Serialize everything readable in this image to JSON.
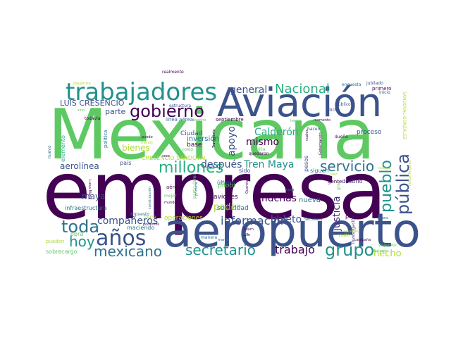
{
  "wordcloud": {
    "palette": {
      "dark_purple": "#440154",
      "indigo": "#472d7b",
      "blue": "#3b528b",
      "steel": "#2c728e",
      "teal": "#21918c",
      "green": "#28ae80",
      "light_green": "#5ec962",
      "lime": "#addc30",
      "yellow": "#fde725",
      "background": "#ffffff"
    },
    "words": [
      {
        "text": "Mexicana",
        "color": "#5ec962"
      },
      {
        "text": "empresa",
        "color": "#440154"
      },
      {
        "text": "aeropuerto",
        "color": "#3b528b"
      },
      {
        "text": "Aviación",
        "color": "#3b528b"
      },
      {
        "text": "trabajadores",
        "color": "#21918c"
      },
      {
        "text": "años",
        "color": "#3b528b"
      },
      {
        "text": "millones",
        "color": "#28ae80"
      },
      {
        "text": "gobierno",
        "color": "#440154"
      },
      {
        "text": "Nacional",
        "color": "#28ae80"
      },
      {
        "text": "pueblo",
        "color": "#21918c"
      },
      {
        "text": "servicio",
        "color": "#2c728e"
      },
      {
        "text": "pública",
        "color": "#3b528b"
      },
      {
        "text": "grupo",
        "color": "#21918c"
      },
      {
        "text": "mexicano",
        "color": "#2c728e"
      },
      {
        "text": "toda",
        "color": "#2c728e"
      },
      {
        "text": "hoy",
        "color": "#21918c"
      },
      {
        "text": "secretario",
        "color": "#21918c"
      },
      {
        "text": "trabajo",
        "color": "#440154"
      },
      {
        "text": "información",
        "color": "#3b528b"
      },
      {
        "text": "compañeros",
        "color": "#3b528b"
      },
      {
        "text": "boleto",
        "color": "#3b528b"
      },
      {
        "text": "Tren Maya",
        "color": "#21918c"
      },
      {
        "text": "después",
        "color": "#3b528b"
      },
      {
        "text": "muchas",
        "color": "#440154"
      },
      {
        "text": "general",
        "color": "#3b528b"
      },
      {
        "text": "apoyo",
        "color": "#3b528b"
      },
      {
        "text": "mismo",
        "color": "#440154"
      },
      {
        "text": "Calderón",
        "color": "#28ae80"
      },
      {
        "text": "parte",
        "color": "#3b528b"
      },
      {
        "text": "LUIS CRESENCIO",
        "color": "#3b528b"
      },
      {
        "text": "aerolínea",
        "color": "#3b528b"
      },
      {
        "text": "justicia",
        "color": "#472d7b"
      },
      {
        "text": "poder",
        "color": "#addc30"
      },
      {
        "text": "hecho",
        "color": "#addc30"
      },
      {
        "text": "maya",
        "color": "#3b528b"
      },
      {
        "text": "bienes",
        "color": "#addc30"
      },
      {
        "text": "nueva",
        "color": "#2c728e"
      },
      {
        "text": "seguridad",
        "color": "#2c728e"
      },
      {
        "text": "operaciones",
        "color": "#addc30"
      },
      {
        "text": "aviones",
        "color": "#440154"
      },
      {
        "text": "piloto",
        "color": "#5ec962"
      },
      {
        "text": "último",
        "color": "#3b528b"
      },
      {
        "text": "inversión",
        "color": "#2c728e"
      },
      {
        "text": "Ciudad",
        "color": "#3b528b"
      },
      {
        "text": "base",
        "color": "#440154"
      },
      {
        "text": "país",
        "color": "#3b528b"
      },
      {
        "text": "sido",
        "color": "#3b528b"
      },
      {
        "text": "proceso",
        "color": "#3b528b"
      },
      {
        "text": "destino",
        "color": "#472d7b"
      },
      {
        "text": "gente",
        "color": "#440154"
      },
      {
        "text": "punto",
        "color": "#440154"
      },
      {
        "text": "siguen",
        "color": "#2c728e"
      },
      {
        "text": "pesos",
        "color": "#3b528b"
      },
      {
        "text": "investigación",
        "color": "#472d7b"
      },
      {
        "text": "infraestructura",
        "color": "#2c728e"
      },
      {
        "text": "impuesto",
        "color": "#2c728e"
      },
      {
        "text": "maciendo",
        "color": "#2c728e"
      },
      {
        "text": "obra",
        "color": "#5ec962"
      },
      {
        "text": "pueden",
        "color": "#addc30"
      },
      {
        "text": "sobrecargo",
        "color": "#5ec962"
      },
      {
        "text": "elemento",
        "color": "#28ae80"
      },
      {
        "text": "nuevo",
        "color": "#2c728e"
      },
      {
        "text": "política",
        "color": "#2c728e"
      },
      {
        "text": "todavía",
        "color": "#440154"
      },
      {
        "text": "línea aérea",
        "color": "#2c728e"
      },
      {
        "text": "septiembre",
        "color": "#440154"
      },
      {
        "text": "hacen",
        "color": "#3b528b"
      },
      {
        "text": "momento",
        "color": "#440154"
      },
      {
        "text": "primero",
        "color": "#440154"
      },
      {
        "text": "encuesta",
        "color": "#2c728e"
      },
      {
        "text": "jubilado",
        "color": "#3b528b"
      },
      {
        "text": "inicio",
        "color": "#3b528b"
      },
      {
        "text": "público",
        "color": "#3b528b"
      },
      {
        "text": "dicho",
        "color": "#3b528b"
      },
      {
        "text": "CRESENCIO SANDOVAL",
        "color": "#addc30"
      },
      {
        "text": "SANDOVAL GONZÁLEZ",
        "color": "#addc30"
      },
      {
        "text": "realmente",
        "color": "#440154"
      },
      {
        "text": "desarrollo",
        "color": "#addc30"
      },
      {
        "text": "estructura",
        "color": "#3b528b"
      },
      {
        "text": "Transporte",
        "color": "#440154"
      },
      {
        "text": "Gobernación",
        "color": "#440154"
      },
      {
        "text": "cuales",
        "color": "#440154"
      },
      {
        "text": "dueño",
        "color": "#440154"
      },
      {
        "text": "gran",
        "color": "#5ec962"
      },
      {
        "text": "Querétaro",
        "color": "#440154"
      },
      {
        "text": "manera",
        "color": "#2c728e"
      },
      {
        "text": "Tulum",
        "color": "#440154"
      },
      {
        "text": "solo",
        "color": "#440154"
      },
      {
        "text": "particulares",
        "color": "#5ec962"
      },
      {
        "text": "Secretaría",
        "color": "#2c728e"
      },
      {
        "text": "vuelo",
        "color": "#addc30"
      },
      {
        "text": "mano",
        "color": "#2c728e"
      },
      {
        "text": "hicieron",
        "color": "#5ec962"
      },
      {
        "text": "campaña",
        "color": "#440154"
      },
      {
        "text": "cosa",
        "color": "#2c728e"
      },
      {
        "text": "juez",
        "color": "#addc30"
      },
      {
        "text": "aérea",
        "color": "#440154"
      },
      {
        "text": "mejor",
        "color": "#5ec962"
      },
      {
        "text": "mundo",
        "color": "#440154"
      },
      {
        "text": "tierra",
        "color": "#addc30"
      },
      {
        "text": "podemos",
        "color": "#440154"
      },
      {
        "text": "Luisa María",
        "color": "#440154"
      },
      {
        "text": "quedaron",
        "color": "#440154"
      },
      {
        "text": "familia",
        "color": "#5ec962"
      },
      {
        "text": "costo",
        "color": "#5ec962"
      },
      {
        "text": "creo",
        "color": "#440154"
      },
      {
        "text": "puedo",
        "color": "#440154"
      },
      {
        "text": "menos",
        "color": "#addc30"
      },
      {
        "text": "sino",
        "color": "#5ec962"
      },
      {
        "text": "hecho",
        "color": "#5ec962"
      },
      {
        "text": "derecho",
        "color": "#5ec962"
      },
      {
        "text": "futa",
        "color": "#5ec962"
      },
      {
        "text": "cuenta",
        "color": "#addc30"
      },
      {
        "text": "acuerdo",
        "color": "#addc30"
      },
      {
        "text": "bien",
        "color": "#2c728e"
      },
      {
        "text": "marca",
        "color": "#2c728e"
      },
      {
        "text": "primera",
        "color": "#2c728e"
      },
      {
        "text": "construcción",
        "color": "#2c728e"
      },
      {
        "text": "Felipe Ángeles",
        "color": "#addc30"
      },
      {
        "text": "ViajeroPos",
        "color": "#5ec962"
      }
    ]
  }
}
